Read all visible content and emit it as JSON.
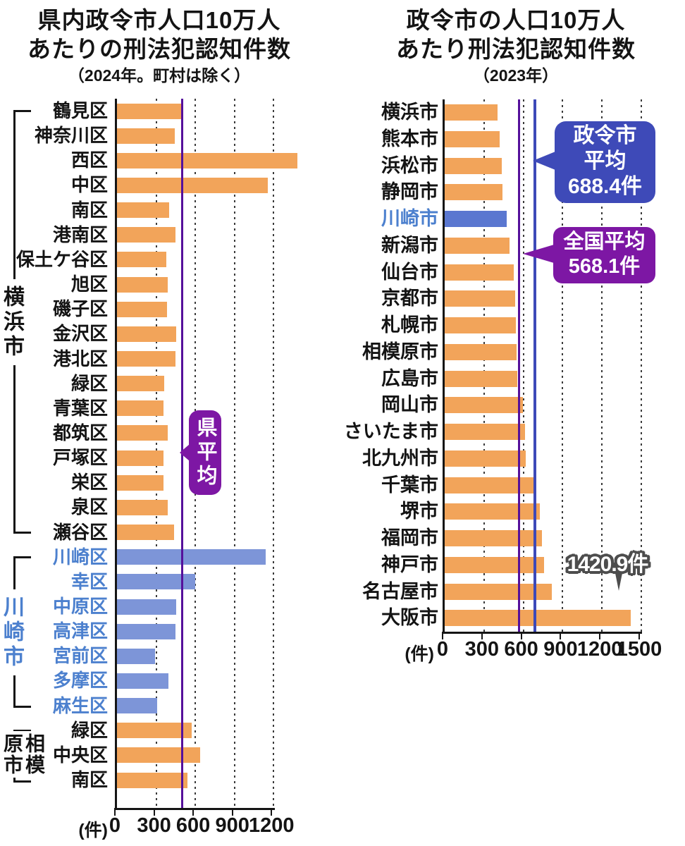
{
  "colors": {
    "bar_orange": "#F2A45A",
    "bar_blue_left": "#7D95D8",
    "bar_blue_right": "#5A77D0",
    "label_blue": "#4C80CE",
    "prefecture_avg_line": "#55109B",
    "national_avg_line": "#55109B",
    "designated_city_avg_line": "#3D49B8",
    "blue_box": "#3E4AB8",
    "purple_box": "#7D17A4",
    "badge_outline": "#4D4D4D"
  },
  "chart_data": [
    {
      "id": "prefecture-wards-2024",
      "type": "bar",
      "orientation": "horizontal",
      "title_lines": [
        "県内政令市人口10万人",
        "あたりの刑法犯認知件数"
      ],
      "subtitle": "（2024年。町村は除く）",
      "unit_label": "(件)",
      "axis_ticks": [
        0,
        300,
        600,
        900,
        1200
      ],
      "xlim": [
        0,
        1200
      ],
      "grid": "dotted-vertical",
      "legend_position": "none",
      "reference_lines": [
        {
          "label": "県平均",
          "value": 500,
          "value_estimated": true,
          "color": "#55109B"
        }
      ],
      "groups": [
        {
          "name": "横浜市",
          "highlight": false,
          "rows": [
            {
              "label": "鶴見区",
              "value": 490
            },
            {
              "label": "神奈川区",
              "value": 445
            },
            {
              "label": "西区",
              "value": 1380
            },
            {
              "label": "中区",
              "value": 1155
            },
            {
              "label": "南区",
              "value": 400
            },
            {
              "label": "港南区",
              "value": 450
            },
            {
              "label": "保土ケ谷区",
              "value": 380
            },
            {
              "label": "旭区",
              "value": 390
            },
            {
              "label": "磯子区",
              "value": 385
            },
            {
              "label": "金沢区",
              "value": 455
            },
            {
              "label": "港北区",
              "value": 450
            },
            {
              "label": "緑区",
              "value": 360
            },
            {
              "label": "青葉区",
              "value": 355
            },
            {
              "label": "都筑区",
              "value": 390
            },
            {
              "label": "戸塚区",
              "value": 355
            },
            {
              "label": "栄区",
              "value": 355
            },
            {
              "label": "泉区",
              "value": 390
            },
            {
              "label": "瀬谷区",
              "value": 435
            }
          ]
        },
        {
          "name": "川崎市",
          "highlight": true,
          "rows": [
            {
              "label": "川崎区",
              "value": 1140
            },
            {
              "label": "幸区",
              "value": 600
            },
            {
              "label": "中原区",
              "value": 455
            },
            {
              "label": "高津区",
              "value": 450
            },
            {
              "label": "宮前区",
              "value": 290
            },
            {
              "label": "多摩区",
              "value": 395
            },
            {
              "label": "麻生区",
              "value": 310
            }
          ]
        },
        {
          "name": "相模原市",
          "highlight": false,
          "rows": [
            {
              "label": "緑区",
              "value": 570
            },
            {
              "label": "中央区",
              "value": 635
            },
            {
              "label": "南区",
              "value": 540
            }
          ]
        }
      ]
    },
    {
      "id": "designated-cities-2023",
      "type": "bar",
      "orientation": "horizontal",
      "title_lines": [
        "政令市の人口10万人",
        "あたり刑法犯認知件数"
      ],
      "subtitle": "（2023年）",
      "unit_label": "(件)",
      "axis_ticks": [
        0,
        300,
        600,
        900,
        1200,
        1500
      ],
      "xlim": [
        0,
        1500
      ],
      "grid": "dotted-vertical",
      "legend_position": "none",
      "reference_lines": [
        {
          "label": "政令市平均",
          "value": 688.4,
          "text_lines": [
            "政令市",
            "平均",
            "688.4件"
          ],
          "color": "#3D49B8"
        },
        {
          "label": "全国平均",
          "value": 568.1,
          "text_lines": [
            "全国平均",
            "568.1件"
          ],
          "color": "#7D17A4"
        }
      ],
      "callout": {
        "text": "1420.9件",
        "target": "大阪市"
      },
      "rows": [
        {
          "label": "横浜市",
          "value": 405,
          "highlight": false
        },
        {
          "label": "熊本市",
          "value": 420,
          "highlight": false
        },
        {
          "label": "浜松市",
          "value": 435,
          "highlight": false
        },
        {
          "label": "静岡市",
          "value": 440,
          "highlight": false
        },
        {
          "label": "川崎市",
          "value": 475,
          "highlight": true
        },
        {
          "label": "新潟市",
          "value": 495,
          "highlight": false
        },
        {
          "label": "仙台市",
          "value": 525,
          "highlight": false
        },
        {
          "label": "京都市",
          "value": 540,
          "highlight": false
        },
        {
          "label": "札幌市",
          "value": 545,
          "highlight": false
        },
        {
          "label": "相模原市",
          "value": 550,
          "highlight": false
        },
        {
          "label": "広島市",
          "value": 555,
          "highlight": false
        },
        {
          "label": "岡山市",
          "value": 595,
          "highlight": false
        },
        {
          "label": "さいたま市",
          "value": 615,
          "highlight": false
        },
        {
          "label": "北九州市",
          "value": 620,
          "highlight": false
        },
        {
          "label": "千葉市",
          "value": 675,
          "highlight": false
        },
        {
          "label": "堺市",
          "value": 725,
          "highlight": false
        },
        {
          "label": "福岡市",
          "value": 740,
          "highlight": false
        },
        {
          "label": "神戸市",
          "value": 760,
          "highlight": false
        },
        {
          "label": "名古屋市",
          "value": 815,
          "highlight": false
        },
        {
          "label": "大阪市",
          "value": 1420.9,
          "highlight": false
        }
      ]
    }
  ]
}
